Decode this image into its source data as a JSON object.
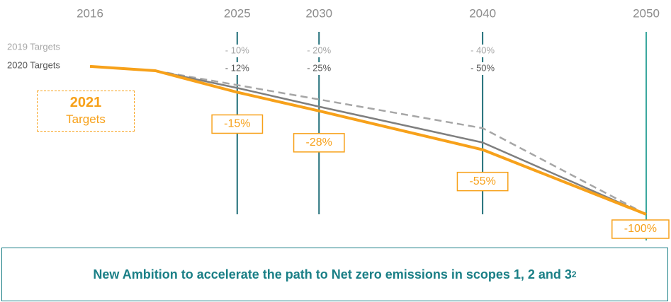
{
  "chart_data": {
    "type": "line",
    "x": [
      2016,
      2020,
      2025,
      2030,
      2040,
      2050
    ],
    "xlim": [
      2016,
      2050
    ],
    "xticks": [
      2016,
      2025,
      2030,
      2040,
      2050
    ],
    "ylim": [
      -100,
      0
    ],
    "series": [
      {
        "name": "2019 Targets",
        "color": "#a6a6a6",
        "dashed": true,
        "values": [
          null,
          0,
          -10,
          -20,
          -40,
          -100
        ],
        "value_labels": [
          null,
          null,
          "- 10%",
          "- 20%",
          "- 40%",
          null
        ]
      },
      {
        "name": "2020 Targets",
        "color": "#7f7f7f",
        "values": [
          null,
          0,
          -12,
          -25,
          -50,
          -100
        ],
        "value_labels": [
          null,
          null,
          "- 12%",
          "- 25%",
          "- 50%",
          null
        ]
      },
      {
        "name": "2021 Targets",
        "color": "#f7a11a",
        "values": [
          3,
          0,
          -15,
          -28,
          -55,
          -100
        ],
        "value_labels": [
          null,
          null,
          "-15%",
          "-28%",
          "-55%",
          "-100%"
        ]
      }
    ],
    "footer": "New Ambition to accelerate the path to Net zero emissions in scopes 1, 2 and 3",
    "footnote": "2"
  }
}
